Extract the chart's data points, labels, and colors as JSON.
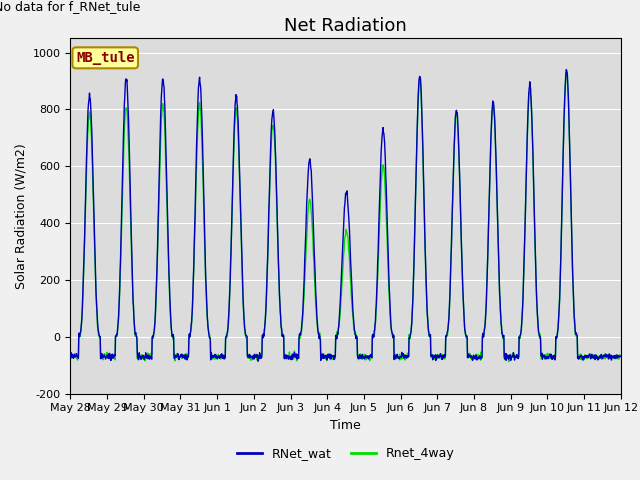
{
  "title": "Net Radiation",
  "xlabel": "Time",
  "ylabel": "Solar Radiation (W/m2)",
  "ylim": [
    -200,
    1050
  ],
  "xlim_start": 0,
  "xlim_end": 336,
  "plot_bg_color": "#dcdcdc",
  "fig_bg_color": "#f0f0f0",
  "line1_color": "#0000bb",
  "line2_color": "#00dd00",
  "line1_label": "RNet_wat",
  "line2_label": "Rnet_4way",
  "annotation_text": "No data for f_RNet_tule",
  "legend_box_text": "MB_tule",
  "legend_box_facecolor": "#ffff99",
  "legend_box_edgecolor": "#aa8800",
  "legend_box_textcolor": "#880000",
  "xtick_labels": [
    "May 28",
    "May 29",
    "May 30",
    "May 31",
    "Jun 1",
    "Jun 2",
    "Jun 3",
    "Jun 4",
    "Jun 5",
    "Jun 6",
    "Jun 7",
    "Jun 8",
    "Jun 9",
    "Jun 10",
    "Jun 11",
    "Jun 12"
  ],
  "xtick_positions": [
    0,
    24,
    48,
    72,
    96,
    120,
    144,
    168,
    192,
    216,
    240,
    264,
    288,
    312,
    336,
    360
  ],
  "ytick_labels": [
    "-200",
    "0",
    "200",
    "400",
    "600",
    "800",
    "1000"
  ],
  "ytick_values": [
    -200,
    0,
    200,
    400,
    600,
    800,
    1000
  ],
  "title_fontsize": 13,
  "label_fontsize": 9,
  "tick_fontsize": 8,
  "annotation_fontsize": 9,
  "legend_fontsize": 9,
  "daily_peaks_wat": [
    850,
    910,
    910,
    910,
    845,
    795,
    625,
    510,
    730,
    920,
    795,
    825,
    885,
    940
  ],
  "daily_peaks_4way": [
    790,
    810,
    820,
    820,
    800,
    750,
    480,
    370,
    600,
    900,
    785,
    810,
    870,
    930
  ],
  "night_value": -70,
  "day_start_hour": 5.5,
  "day_end_hour": 19.5,
  "total_hours": 360,
  "num_days": 14
}
